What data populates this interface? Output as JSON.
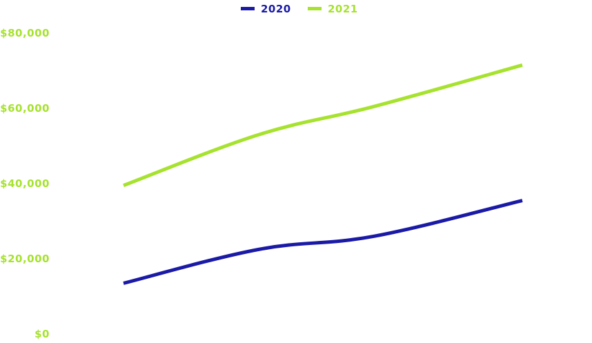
{
  "chart_data": {
    "type": "line",
    "x": [
      1,
      2,
      3,
      4
    ],
    "ylim": [
      0,
      80000
    ],
    "yticks": [
      "$0",
      "$20,000",
      "$40,000",
      "$60,000",
      "$80,000"
    ],
    "ytick_values": [
      0,
      20000,
      40000,
      60000,
      80000
    ],
    "grid": false,
    "legend_position": "top-center",
    "series": [
      {
        "name": "2020",
        "color": "#1a1aa6",
        "values": [
          13500,
          22500,
          26000,
          35500
        ]
      },
      {
        "name": "2021",
        "color": "#a6e22e",
        "values": [
          39500,
          53000,
          60500,
          71500
        ]
      }
    ],
    "axis_label_color": "#a6e22e"
  }
}
